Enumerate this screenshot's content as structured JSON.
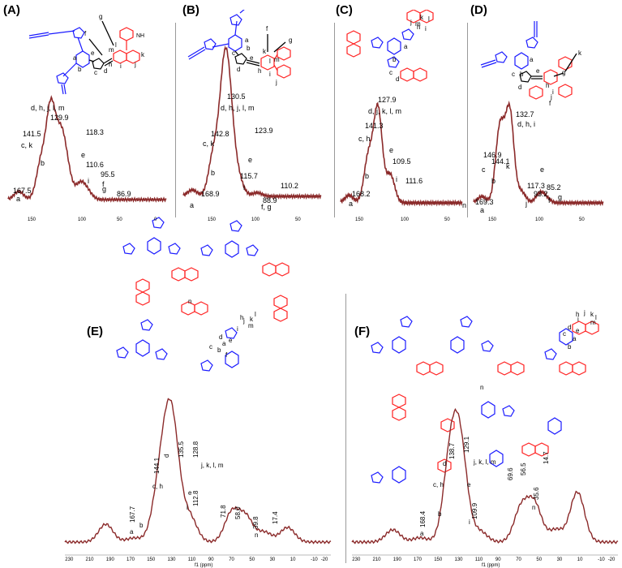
{
  "colors": {
    "spectrum": "#8b2a2a",
    "donor": "#1a1aff",
    "acceptor": "#ff2020",
    "arrow": "#000000"
  },
  "panels": [
    {
      "letter": "(A)",
      "peaks": [
        "d, h, j, l, m",
        "129.9",
        "141.5",
        "c, k",
        "118.3",
        "e",
        "110.6",
        "i",
        "95.5",
        "f",
        "86.9",
        "g",
        "167.5",
        "a",
        "b"
      ],
      "ticks": [
        "150",
        "100",
        "50",
        "0"
      ],
      "structure_letters": [
        "a",
        "b",
        "c",
        "d",
        "e",
        "f",
        "g",
        "h",
        "i",
        "j",
        "k",
        "l",
        "m",
        "NH"
      ]
    },
    {
      "letter": "(B)",
      "peaks": [
        "130.5",
        "d, h, j, l, m",
        "142.8",
        "c, k",
        "123.9",
        "e",
        "115.7",
        "i",
        "110.2",
        "168.9",
        "88.9",
        "f, g",
        "a",
        "b"
      ],
      "ticks": [
        "150",
        "100",
        "50"
      ],
      "structure_letters": [
        "a",
        "b",
        "c",
        "d",
        "e",
        "f",
        "g",
        "h",
        "i",
        "j",
        "k",
        "l",
        "m"
      ]
    },
    {
      "letter": "(C)",
      "peaks": [
        "127.9",
        "d, j, k, l, m",
        "141.3",
        "c, h",
        "e",
        "109.5",
        "i",
        "111.6",
        "168.2",
        "a",
        "b",
        "n"
      ],
      "ticks": [
        "150",
        "100",
        "50"
      ],
      "structure_letters": [
        "a",
        "b",
        "c",
        "d",
        "e",
        "h",
        "i",
        "j",
        "k",
        "l",
        "m",
        "n"
      ]
    },
    {
      "letter": "(D)",
      "peaks": [
        "132.7",
        "d, h, i",
        "144.1",
        "c",
        "146.9",
        "k",
        "e",
        "f",
        "g",
        "117.3",
        "93.2",
        "85.2",
        "169.3",
        "a",
        "b",
        "j"
      ],
      "ticks": [
        "150",
        "100",
        "50"
      ],
      "structure_letters": [
        "a",
        "b",
        "c",
        "d",
        "e",
        "f",
        "g",
        "h",
        "i",
        "j",
        "k"
      ]
    },
    {
      "letter": "(E)",
      "peaks": [
        "135.5",
        "d",
        "128.8",
        "j, k, l, m",
        "144.1",
        "c, h",
        "167.7",
        "a",
        "b",
        "e",
        "112.8",
        "i",
        "71.8",
        "58.0",
        "39.8",
        "n",
        "17.4"
      ],
      "ticks": [
        "230",
        "210",
        "190",
        "170",
        "150",
        "130",
        "110",
        "90",
        "70",
        "50",
        "30",
        "10",
        "-10",
        "-20"
      ],
      "xlabel": "f1 (ppm)",
      "structure_letters": [
        "a",
        "b",
        "c",
        "d",
        "e",
        "h",
        "i",
        "j",
        "k",
        "l",
        "m",
        "n"
      ]
    },
    {
      "letter": "(F)",
      "peaks": [
        "138.7",
        "129.1",
        "d",
        "j, k, l, m",
        "c, h",
        "e",
        "168.4",
        "a",
        "b",
        "109.9",
        "i",
        "69.6",
        "56.5",
        "35.6",
        "n",
        "14.7"
      ],
      "ticks": [
        "230",
        "210",
        "190",
        "170",
        "150",
        "130",
        "110",
        "90",
        "70",
        "50",
        "30",
        "10",
        "-10",
        "-20"
      ],
      "xlabel": "f1 (ppm)",
      "structure_letters": [
        "a",
        "b",
        "c",
        "d",
        "e",
        "h",
        "i",
        "j",
        "k",
        "l",
        "m",
        "n"
      ]
    }
  ],
  "chart_data": [
    {
      "type": "line",
      "title": "",
      "xlabel": "",
      "ylabel": "",
      "xlim": [
        180,
        -5
      ],
      "series": [
        {
          "x": [
            167.5,
            141.5,
            129.9,
            118.3,
            110.6,
            95.5,
            86.9
          ],
          "y": [
            0.09,
            0.4,
            1.0,
            0.62,
            0.26,
            0.17,
            0.08
          ]
        }
      ]
    },
    {
      "type": "line",
      "title": "",
      "xlabel": "",
      "ylabel": "",
      "xlim": [
        180,
        10
      ],
      "series": [
        {
          "x": [
            168.9,
            142.8,
            130.5,
            123.9,
            115.7,
            110.2,
            88.9
          ],
          "y": [
            0.07,
            0.45,
            1.0,
            0.85,
            0.15,
            0.1,
            0.04
          ]
        }
      ]
    },
    {
      "type": "line",
      "title": "",
      "xlabel": "",
      "ylabel": "",
      "xlim": [
        180,
        10
      ],
      "series": [
        {
          "x": [
            168.2,
            141.3,
            127.9,
            111.6,
            109.5
          ],
          "y": [
            0.08,
            0.48,
            1.0,
            0.14,
            0.16
          ]
        }
      ]
    },
    {
      "type": "line",
      "title": "",
      "xlabel": "",
      "ylabel": "",
      "xlim": [
        180,
        10
      ],
      "series": [
        {
          "x": [
            169.3,
            146.9,
            144.1,
            132.7,
            117.3,
            93.2,
            85.2
          ],
          "y": [
            0.07,
            0.4,
            0.46,
            1.0,
            0.12,
            0.1,
            0.05
          ]
        }
      ]
    },
    {
      "type": "line",
      "title": "",
      "xlabel": "f1 (ppm)",
      "ylabel": "",
      "xlim": [
        235,
        -25
      ],
      "series": [
        {
          "x": [
            195,
            167.7,
            144.1,
            135.5,
            128.8,
            112.8,
            71.8,
            58.0,
            39.8,
            17.4
          ],
          "y": [
            0.22,
            0.05,
            0.45,
            0.85,
            1.0,
            0.3,
            0.36,
            0.3,
            0.12,
            0.18
          ]
        }
      ]
    },
    {
      "type": "line",
      "title": "",
      "xlabel": "f1 (ppm)",
      "ylabel": "",
      "xlim": [
        235,
        -25
      ],
      "series": [
        {
          "x": [
            195,
            168.4,
            138.7,
            129.1,
            109.9,
            69.6,
            56.5,
            35.6,
            14.7
          ],
          "y": [
            0.14,
            0.05,
            0.9,
            1.0,
            0.12,
            0.38,
            0.42,
            0.14,
            0.57
          ]
        }
      ]
    }
  ]
}
